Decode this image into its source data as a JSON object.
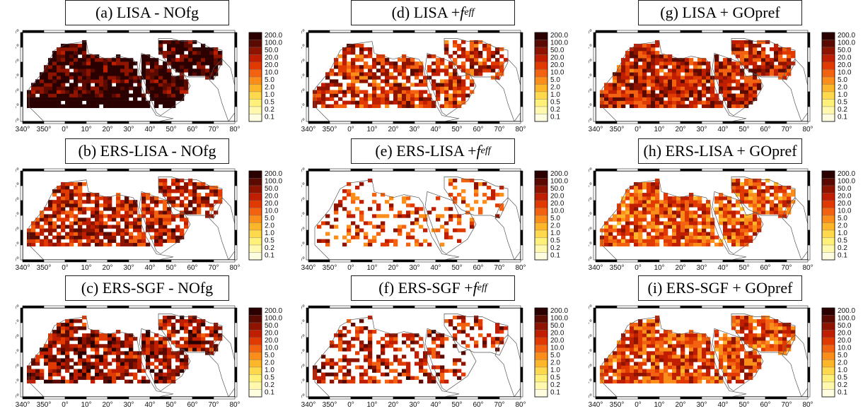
{
  "colorbar": {
    "labels": [
      "200.0",
      "100.0",
      "50.0",
      "20.0",
      "20.0",
      "10.0",
      "5.0",
      "2.0",
      "1.0",
      "0.5",
      "0.2",
      "0.1"
    ],
    "colors": [
      "#2b0000",
      "#5a0a00",
      "#8f1400",
      "#c01e00",
      "#e13a00",
      "#f36210",
      "#fb8d1a",
      "#fdb52a",
      "#ffd94d",
      "#fff07a",
      "#fff8ad",
      "#fffde0"
    ]
  },
  "axes": {
    "lon_ticks": [
      "340°",
      "350°",
      "0°",
      "10°",
      "20°",
      "30°",
      "40°",
      "50°",
      "60°",
      "70°",
      "80°"
    ],
    "lat_ticks": [
      "40°",
      "35°",
      "30°",
      "25°",
      "20°",
      "15°",
      "10°"
    ]
  },
  "panels": [
    {
      "id": "a",
      "label_pre": "(a) LISA - NOfg",
      "label_math": "",
      "label_sub": "",
      "intensity": 0.92,
      "density": 0.96
    },
    {
      "id": "d",
      "label_pre": "(d) LISA + ",
      "label_math": "f",
      "label_sub": "eff",
      "intensity": 0.55,
      "density": 0.72
    },
    {
      "id": "g",
      "label_pre": "(g) LISA + GOpref",
      "label_math": "",
      "label_sub": "",
      "intensity": 0.6,
      "density": 0.92
    },
    {
      "id": "b",
      "label_pre": "(b) ERS-LISA - NOfg",
      "label_math": "",
      "label_sub": "",
      "intensity": 0.62,
      "density": 0.8
    },
    {
      "id": "e",
      "label_pre": "(e) ERS-LISA + ",
      "label_math": "f",
      "label_sub": "eff",
      "intensity": 0.5,
      "density": 0.32
    },
    {
      "id": "h",
      "label_pre": "(h) ERS-LISA + GOpref",
      "label_math": "",
      "label_sub": "",
      "intensity": 0.45,
      "density": 0.85
    },
    {
      "id": "c",
      "label_pre": "(c) ERS-SGF - NOfg",
      "label_math": "",
      "label_sub": "",
      "intensity": 0.7,
      "density": 0.78
    },
    {
      "id": "f",
      "label_pre": "(f) ERS-SGF + ",
      "label_math": "f",
      "label_sub": "eff",
      "intensity": 0.62,
      "density": 0.45
    },
    {
      "id": "i",
      "label_pre": "(i) ERS-SGF + GOpref",
      "label_math": "",
      "label_sub": "",
      "intensity": 0.48,
      "density": 0.88
    }
  ]
}
